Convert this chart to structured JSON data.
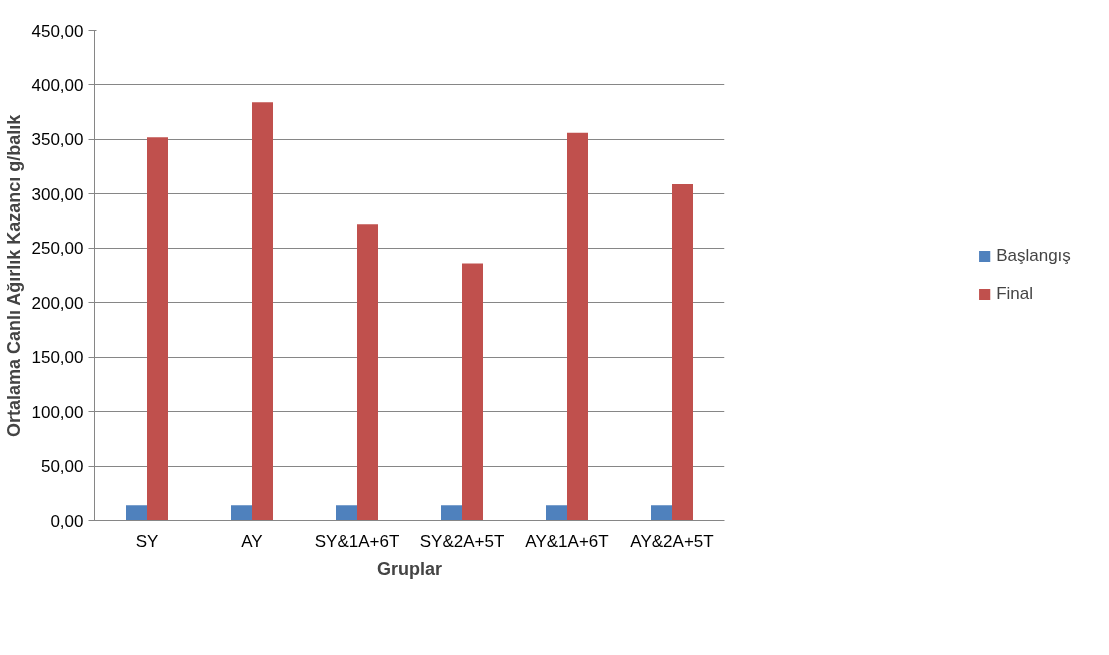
{
  "chart_data": {
    "type": "bar",
    "xlabel": "Gruplar",
    "ylabel": "Ortalama Canlı Ağırlık Kazancı g/balık",
    "categories": [
      "SY",
      "AY",
      "SY&1A+6T",
      "SY&2A+5T",
      "AY&1A+6T",
      "AY&2A+5T"
    ],
    "series": [
      {
        "name": "Başlangış",
        "color": "#4f81bd",
        "values": [
          14,
          14,
          14,
          14,
          14,
          14
        ]
      },
      {
        "name": "Final",
        "color": "#c0504d",
        "values": [
          352,
          384,
          272,
          236,
          356,
          309
        ]
      }
    ],
    "ylim": [
      0,
      450
    ],
    "yticks": [
      {
        "value": 0,
        "label": "0,00"
      },
      {
        "value": 50,
        "label": "50,00"
      },
      {
        "value": 100,
        "label": "100,00"
      },
      {
        "value": 150,
        "label": "150,00"
      },
      {
        "value": 200,
        "label": "200,00"
      },
      {
        "value": 250,
        "label": "250,00"
      },
      {
        "value": 300,
        "label": "300,00"
      },
      {
        "value": 350,
        "label": "350,00"
      },
      {
        "value": 400,
        "label": "400,00"
      },
      {
        "value": 450,
        "label": "450,00"
      }
    ],
    "grid": "y",
    "legend": "right"
  }
}
